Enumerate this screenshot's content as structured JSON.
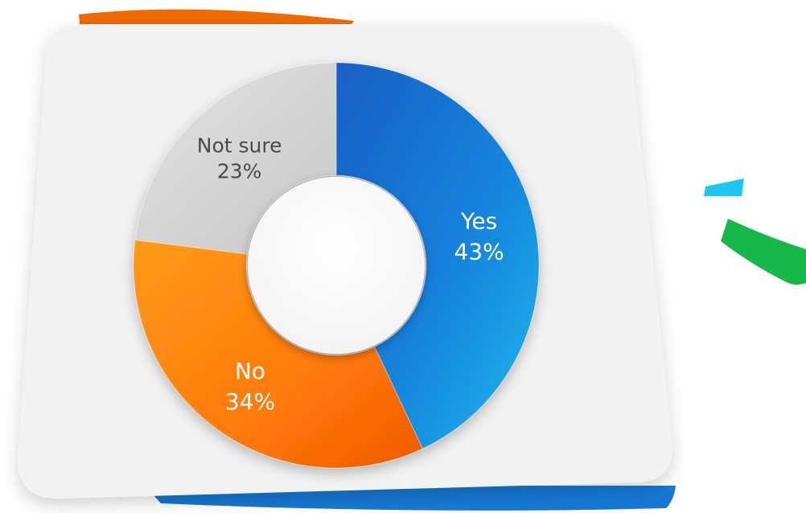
{
  "chart_data": {
    "type": "pie",
    "subtype": "donut",
    "slices": [
      {
        "category": "Yes",
        "label": "Yes",
        "value_label": "43%",
        "value": 43,
        "color": "#1a7fd6"
      },
      {
        "category": "No",
        "label": "No",
        "value_label": "34%",
        "value": 34,
        "color": "#ff7a0a"
      },
      {
        "category": "Not sure",
        "label": "Not sure",
        "value_label": "23%",
        "value": 23,
        "color": "#d4d4d4"
      }
    ],
    "start_angle": "top",
    "direction": "clockwise"
  },
  "colors": {
    "card": "#f2f2f2",
    "accent_orange": "#f06a00",
    "accent_blue": "#1677d2",
    "accent_cyan": "#1ec6f0",
    "accent_green": "#16b84a",
    "label_dark": "#4a4a4a",
    "label_light": "#ffffff"
  }
}
